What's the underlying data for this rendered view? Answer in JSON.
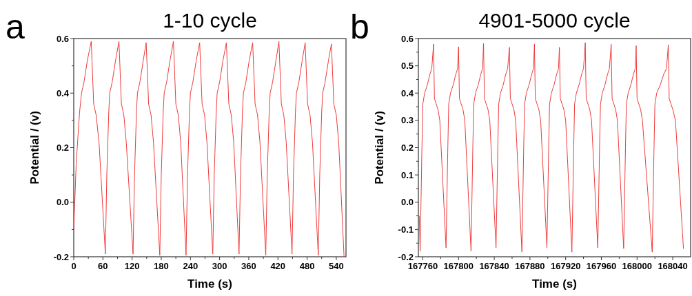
{
  "chart_data": [
    {
      "type": "line",
      "title": "1-10 cycle",
      "xlabel": "Time (s)",
      "ylabel": "Potential / (v)",
      "annotations": [
        "a"
      ],
      "xlim": [
        0,
        560
      ],
      "ylim": [
        -0.2,
        0.6
      ],
      "xticks": [
        0,
        {
          "value": 30,
          "label": null
        },
        60,
        {
          "value": 90,
          "label": null
        },
        120,
        {
          "value": 150,
          "label": null
        },
        180,
        {
          "value": 210,
          "label": null
        },
        240,
        {
          "value": 270,
          "label": null
        },
        300,
        {
          "value": 330,
          "label": null
        },
        360,
        {
          "value": 390,
          "label": null
        },
        420,
        {
          "value": 450,
          "label": null
        },
        480,
        {
          "value": 510,
          "label": null
        },
        540
      ],
      "yticks": [
        -0.2,
        {
          "value": -0.1,
          "label": null
        },
        {
          "value": 0,
          "label": "0.0"
        },
        {
          "value": 0.1,
          "label": null
        },
        0.2,
        {
          "value": 0.3,
          "label": null
        },
        0.4,
        {
          "value": 0.5,
          "label": null
        },
        0.6
      ],
      "grid": false,
      "marker": "none",
      "line_style": "solid",
      "series": [
        {
          "color": "#ee3b3b",
          "x": [
            0,
            5,
            12,
            16,
            21,
            28,
            36,
            41,
            46,
            52,
            65,
            68,
            72,
            74,
            79,
            86,
            93,
            98,
            103,
            108,
            122,
            125,
            129,
            131,
            136,
            143,
            149,
            154,
            159,
            164,
            177,
            180,
            184,
            186,
            191,
            198,
            205,
            210,
            215,
            220,
            231,
            234,
            238,
            240,
            245,
            252,
            259,
            264,
            269,
            274,
            286,
            289,
            293,
            295,
            300,
            307,
            314,
            319,
            324,
            329,
            340,
            343,
            347,
            349,
            354,
            361,
            368,
            373,
            378,
            383,
            395,
            398,
            402,
            404,
            409,
            416,
            422,
            427,
            432,
            437,
            449,
            452,
            456,
            458,
            463,
            470,
            476,
            481,
            486,
            491,
            503,
            506,
            510,
            512,
            517,
            524,
            530,
            535,
            540,
            545,
            556
          ],
          "values": [
            -0.1,
            0.14,
            0.33,
            0.4,
            0.44,
            0.52,
            0.59,
            0.36,
            0.32,
            0.22,
            -0.19,
            0.1,
            0.33,
            0.4,
            0.44,
            0.52,
            0.59,
            0.36,
            0.32,
            0.22,
            -0.19,
            0.1,
            0.33,
            0.4,
            0.44,
            0.52,
            0.585,
            0.36,
            0.32,
            0.22,
            -0.195,
            0.1,
            0.33,
            0.4,
            0.44,
            0.52,
            0.59,
            0.36,
            0.32,
            0.22,
            -0.195,
            0.1,
            0.33,
            0.4,
            0.44,
            0.52,
            0.585,
            0.36,
            0.32,
            0.22,
            -0.19,
            0.1,
            0.33,
            0.4,
            0.44,
            0.52,
            0.585,
            0.36,
            0.32,
            0.22,
            -0.19,
            0.1,
            0.33,
            0.4,
            0.44,
            0.52,
            0.585,
            0.36,
            0.32,
            0.22,
            -0.195,
            0.1,
            0.33,
            0.4,
            0.44,
            0.52,
            0.59,
            0.36,
            0.32,
            0.22,
            -0.19,
            0.1,
            0.33,
            0.4,
            0.44,
            0.52,
            0.585,
            0.36,
            0.32,
            0.22,
            -0.195,
            0.1,
            0.33,
            0.4,
            0.44,
            0.52,
            0.58,
            0.36,
            0.32,
            0.22,
            -0.2
          ]
        }
      ]
    },
    {
      "type": "line",
      "title": "4901-5000 cycle",
      "xlabel": "Time (s)",
      "ylabel": "Potential / (v)",
      "annotations": [
        "b"
      ],
      "xlim": [
        167755,
        168060
      ],
      "ylim": [
        -0.2,
        0.6
      ],
      "xticks": [
        167760,
        {
          "value": 167780,
          "label": null
        },
        167800,
        {
          "value": 167820,
          "label": null
        },
        167840,
        {
          "value": 167860,
          "label": null
        },
        167880,
        {
          "value": 167900,
          "label": null
        },
        167920,
        {
          "value": 167940,
          "label": null
        },
        167960,
        {
          "value": 167980,
          "label": null
        },
        168000,
        {
          "value": 168020,
          "label": null
        },
        168040
      ],
      "yticks": [
        -0.2,
        {
          "value": -0.15,
          "label": null
        },
        -0.1,
        {
          "value": -0.05,
          "label": null
        },
        {
          "value": 0,
          "label": "0.0"
        },
        {
          "value": 0.05,
          "label": null
        },
        0.1,
        {
          "value": 0.15,
          "label": null
        },
        0.2,
        {
          "value": 0.25,
          "label": null
        },
        0.3,
        {
          "value": 0.35,
          "label": null
        },
        0.4,
        {
          "value": 0.45,
          "label": null
        },
        0.5,
        {
          "value": 0.55,
          "label": null
        },
        0.6
      ],
      "grid": false,
      "marker": "none",
      "line_style": "solid",
      "series": [
        {
          "color": "#ee3b3b",
          "x": [
            167756,
            167757,
            167759,
            167760,
            167762,
            167765,
            167768,
            167770,
            167772,
            167773,
            167777,
            167779,
            167786,
            167788,
            167789,
            167791,
            167794,
            167797,
            167799,
            167800,
            167801,
            167805,
            167807,
            167814,
            167816,
            167817,
            167819,
            167822,
            167825,
            167827,
            167828,
            167829,
            167833,
            167835,
            167842,
            167844,
            167845,
            167847,
            167850,
            167853,
            167855,
            167857,
            167858,
            167862,
            167864,
            167871,
            167873,
            167874,
            167876,
            167879,
            167882,
            167884,
            167885,
            167886,
            167890,
            167892,
            167899,
            167901,
            167902,
            167904,
            167907,
            167910,
            167912,
            167913,
            167914,
            167918,
            167920,
            167927,
            167929,
            167930,
            167932,
            167935,
            167938,
            167940,
            167942,
            167943,
            167947,
            167949,
            167956,
            167958,
            167959,
            167961,
            167964,
            167967,
            167969,
            167971,
            167972,
            167976,
            167978,
            167985,
            167987,
            167988,
            167990,
            167993,
            167996,
            167998,
            167999,
            168000,
            168004,
            168006,
            168017,
            168019,
            168020,
            168022,
            168026,
            168030,
            168033,
            168035,
            168036,
            168040,
            168043,
            168052
          ],
          "values": [
            -0.05,
            -0.18,
            0.2,
            0.36,
            0.4,
            0.43,
            0.47,
            0.49,
            0.58,
            0.38,
            0.34,
            0.3,
            -0.167,
            0.2,
            0.36,
            0.4,
            0.43,
            0.47,
            0.49,
            0.57,
            0.38,
            0.34,
            0.3,
            -0.18,
            0.2,
            0.36,
            0.4,
            0.43,
            0.47,
            0.49,
            0.582,
            0.38,
            0.34,
            0.3,
            -0.167,
            0.2,
            0.36,
            0.4,
            0.43,
            0.47,
            0.49,
            0.568,
            0.38,
            0.34,
            0.3,
            -0.182,
            0.2,
            0.36,
            0.4,
            0.43,
            0.47,
            0.49,
            0.58,
            0.38,
            0.34,
            0.3,
            -0.167,
            0.2,
            0.36,
            0.4,
            0.43,
            0.47,
            0.49,
            0.568,
            0.38,
            0.34,
            0.3,
            -0.183,
            0.2,
            0.36,
            0.4,
            0.43,
            0.47,
            0.49,
            0.585,
            0.38,
            0.34,
            0.3,
            -0.167,
            0.2,
            0.36,
            0.4,
            0.43,
            0.47,
            0.49,
            0.579,
            0.38,
            0.34,
            0.3,
            -0.17,
            0.2,
            0.36,
            0.4,
            0.43,
            0.47,
            0.49,
            0.574,
            0.38,
            0.34,
            0.3,
            -0.183,
            0.2,
            0.36,
            0.4,
            0.43,
            0.47,
            0.49,
            0.577,
            0.38,
            0.34,
            0.3,
            -0.171
          ]
        }
      ]
    }
  ]
}
